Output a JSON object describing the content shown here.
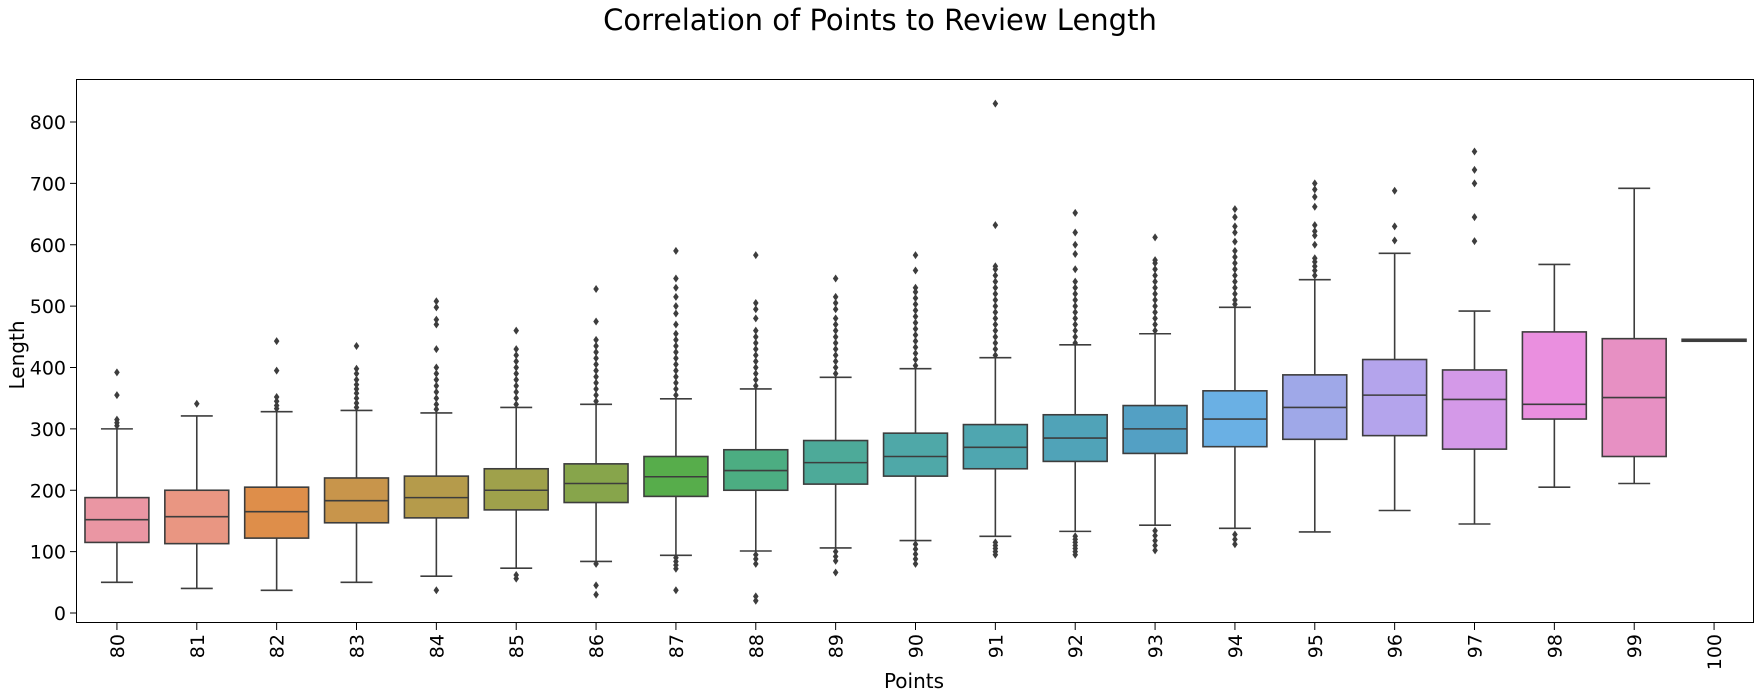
{
  "chart_data": {
    "type": "box",
    "title": "Correlation of Points to Review Length",
    "xlabel": "Points",
    "ylabel": "Length",
    "ylim": [
      -20,
      870
    ],
    "yticks": [
      "0",
      "100",
      "200",
      "300",
      "400",
      "500",
      "600",
      "700",
      "800"
    ],
    "grid": false,
    "categories": [
      "80",
      "81",
      "82",
      "83",
      "84",
      "85",
      "86",
      "87",
      "88",
      "89",
      "90",
      "91",
      "92",
      "93",
      "94",
      "95",
      "96",
      "97",
      "98",
      "99",
      "100"
    ],
    "boxes": [
      {
        "category": "80",
        "color": "#ea96a3",
        "whisker_low": 50,
        "q1": 115,
        "median": 152,
        "q3": 188,
        "whisker_high": 300,
        "outliers": [
          305,
          310,
          315,
          355,
          392
        ]
      },
      {
        "category": "81",
        "color": "#e99682",
        "whisker_low": 40,
        "q1": 113,
        "median": 157,
        "q3": 200,
        "whisker_high": 321,
        "outliers": [
          341
        ]
      },
      {
        "category": "82",
        "color": "#de8e4a",
        "whisker_low": 37,
        "q1": 122,
        "median": 165,
        "q3": 205,
        "whisker_high": 328,
        "outliers": [
          333,
          338,
          345,
          352,
          395,
          443
        ]
      },
      {
        "category": "83",
        "color": "#c8954b",
        "whisker_low": 50,
        "q1": 147,
        "median": 183,
        "q3": 220,
        "whisker_high": 330,
        "outliers": [
          335,
          342,
          350,
          358,
          365,
          372,
          380,
          390,
          398,
          435
        ]
      },
      {
        "category": "84",
        "color": "#b59b4b",
        "whisker_low": 60,
        "q1": 155,
        "median": 188,
        "q3": 223,
        "whisker_high": 326,
        "outliers": [
          37,
          332,
          340,
          350,
          360,
          370,
          380,
          390,
          400,
          430,
          470,
          478,
          498,
          508
        ]
      },
      {
        "category": "85",
        "color": "#9fa14b",
        "whisker_low": 73,
        "q1": 168,
        "median": 200,
        "q3": 235,
        "whisker_high": 335,
        "outliers": [
          56,
          62,
          340,
          350,
          360,
          370,
          380,
          390,
          400,
          410,
          420,
          430,
          460
        ]
      },
      {
        "category": "86",
        "color": "#87a54b",
        "whisker_low": 84,
        "q1": 180,
        "median": 211,
        "q3": 243,
        "whisker_high": 340,
        "outliers": [
          30,
          45,
          80,
          345,
          355,
          365,
          375,
          385,
          395,
          405,
          415,
          425,
          435,
          445,
          475,
          528
        ]
      },
      {
        "category": "87",
        "color": "#57ad4b",
        "whisker_low": 94,
        "q1": 190,
        "median": 222,
        "q3": 255,
        "whisker_high": 349,
        "outliers": [
          37,
          72,
          78,
          84,
          90,
          355,
          365,
          375,
          385,
          395,
          405,
          415,
          425,
          435,
          445,
          455,
          470,
          488,
          500,
          515,
          530,
          545,
          590
        ]
      },
      {
        "category": "88",
        "color": "#4cad82",
        "whisker_low": 101,
        "q1": 200,
        "median": 232,
        "q3": 266,
        "whisker_high": 365,
        "outliers": [
          20,
          27,
          80,
          88,
          95,
          370,
          380,
          390,
          400,
          410,
          420,
          430,
          440,
          450,
          460,
          480,
          495,
          505,
          583
        ]
      },
      {
        "category": "89",
        "color": "#4daa99",
        "whisker_low": 106,
        "q1": 210,
        "median": 245,
        "q3": 281,
        "whisker_high": 384,
        "outliers": [
          66,
          85,
          92,
          100,
          390,
          400,
          410,
          420,
          430,
          440,
          450,
          460,
          470,
          480,
          495,
          505,
          515,
          545
        ]
      },
      {
        "category": "90",
        "color": "#4fa8a8",
        "whisker_low": 118,
        "q1": 223,
        "median": 255,
        "q3": 293,
        "whisker_high": 398,
        "outliers": [
          80,
          88,
          96,
          104,
          112,
          403,
          413,
          423,
          433,
          443,
          453,
          463,
          473,
          483,
          493,
          503,
          513,
          523,
          530,
          558,
          583
        ]
      },
      {
        "category": "91",
        "color": "#4fa6b0",
        "whisker_low": 125,
        "q1": 235,
        "median": 270,
        "q3": 307,
        "whisker_high": 416,
        "outliers": [
          95,
          100,
          105,
          110,
          115,
          420,
          430,
          440,
          450,
          460,
          470,
          480,
          490,
          500,
          510,
          520,
          530,
          540,
          550,
          560,
          565,
          632,
          830
        ]
      },
      {
        "category": "92",
        "color": "#50a3b8",
        "whisker_low": 133,
        "q1": 247,
        "median": 285,
        "q3": 323,
        "whisker_high": 437,
        "outliers": [
          95,
          100,
          105,
          110,
          115,
          120,
          125,
          440,
          450,
          460,
          470,
          480,
          490,
          500,
          510,
          520,
          530,
          540,
          560,
          585,
          600,
          620,
          652
        ]
      },
      {
        "category": "93",
        "color": "#53a0c4",
        "whisker_low": 143,
        "q1": 260,
        "median": 300,
        "q3": 338,
        "whisker_high": 455,
        "outliers": [
          102,
          110,
          118,
          126,
          134,
          460,
          470,
          480,
          490,
          500,
          510,
          520,
          530,
          540,
          550,
          560,
          570,
          575,
          612
        ]
      },
      {
        "category": "94",
        "color": "#6ab0e4",
        "whisker_low": 138,
        "q1": 271,
        "median": 316,
        "q3": 362,
        "whisker_high": 498,
        "outliers": [
          112,
          120,
          128,
          503,
          510,
          520,
          530,
          540,
          550,
          560,
          570,
          580,
          590,
          605,
          620,
          630,
          645,
          658
        ]
      },
      {
        "category": "95",
        "color": "#9fa8e8",
        "whisker_low": 132,
        "q1": 283,
        "median": 335,
        "q3": 388,
        "whisker_high": 543,
        "outliers": [
          550,
          558,
          565,
          572,
          578,
          600,
          615,
          622,
          632,
          662,
          678,
          690,
          700
        ]
      },
      {
        "category": "96",
        "color": "#b4a4ec",
        "whisker_low": 167,
        "q1": 289,
        "median": 355,
        "q3": 413,
        "whisker_high": 586,
        "outliers": [
          607,
          630,
          688
        ]
      },
      {
        "category": "97",
        "color": "#d499e8",
        "whisker_low": 145,
        "q1": 267,
        "median": 348,
        "q3": 396,
        "whisker_high": 492,
        "outliers": [
          606,
          645,
          700,
          722,
          752
        ]
      },
      {
        "category": "98",
        "color": "#ea8fdf",
        "whisker_low": 205,
        "q1": 316,
        "median": 340,
        "q3": 458,
        "whisker_high": 568,
        "outliers": []
      },
      {
        "category": "99",
        "color": "#e790c3",
        "whisker_low": 211,
        "q1": 255,
        "median": 351,
        "q3": 447,
        "whisker_high": 692,
        "outliers": []
      },
      {
        "category": "100",
        "color": "#e893ae",
        "whisker_low": 445,
        "q1": 445,
        "median": 445,
        "q3": 446,
        "whisker_high": 446,
        "outliers": []
      }
    ]
  }
}
